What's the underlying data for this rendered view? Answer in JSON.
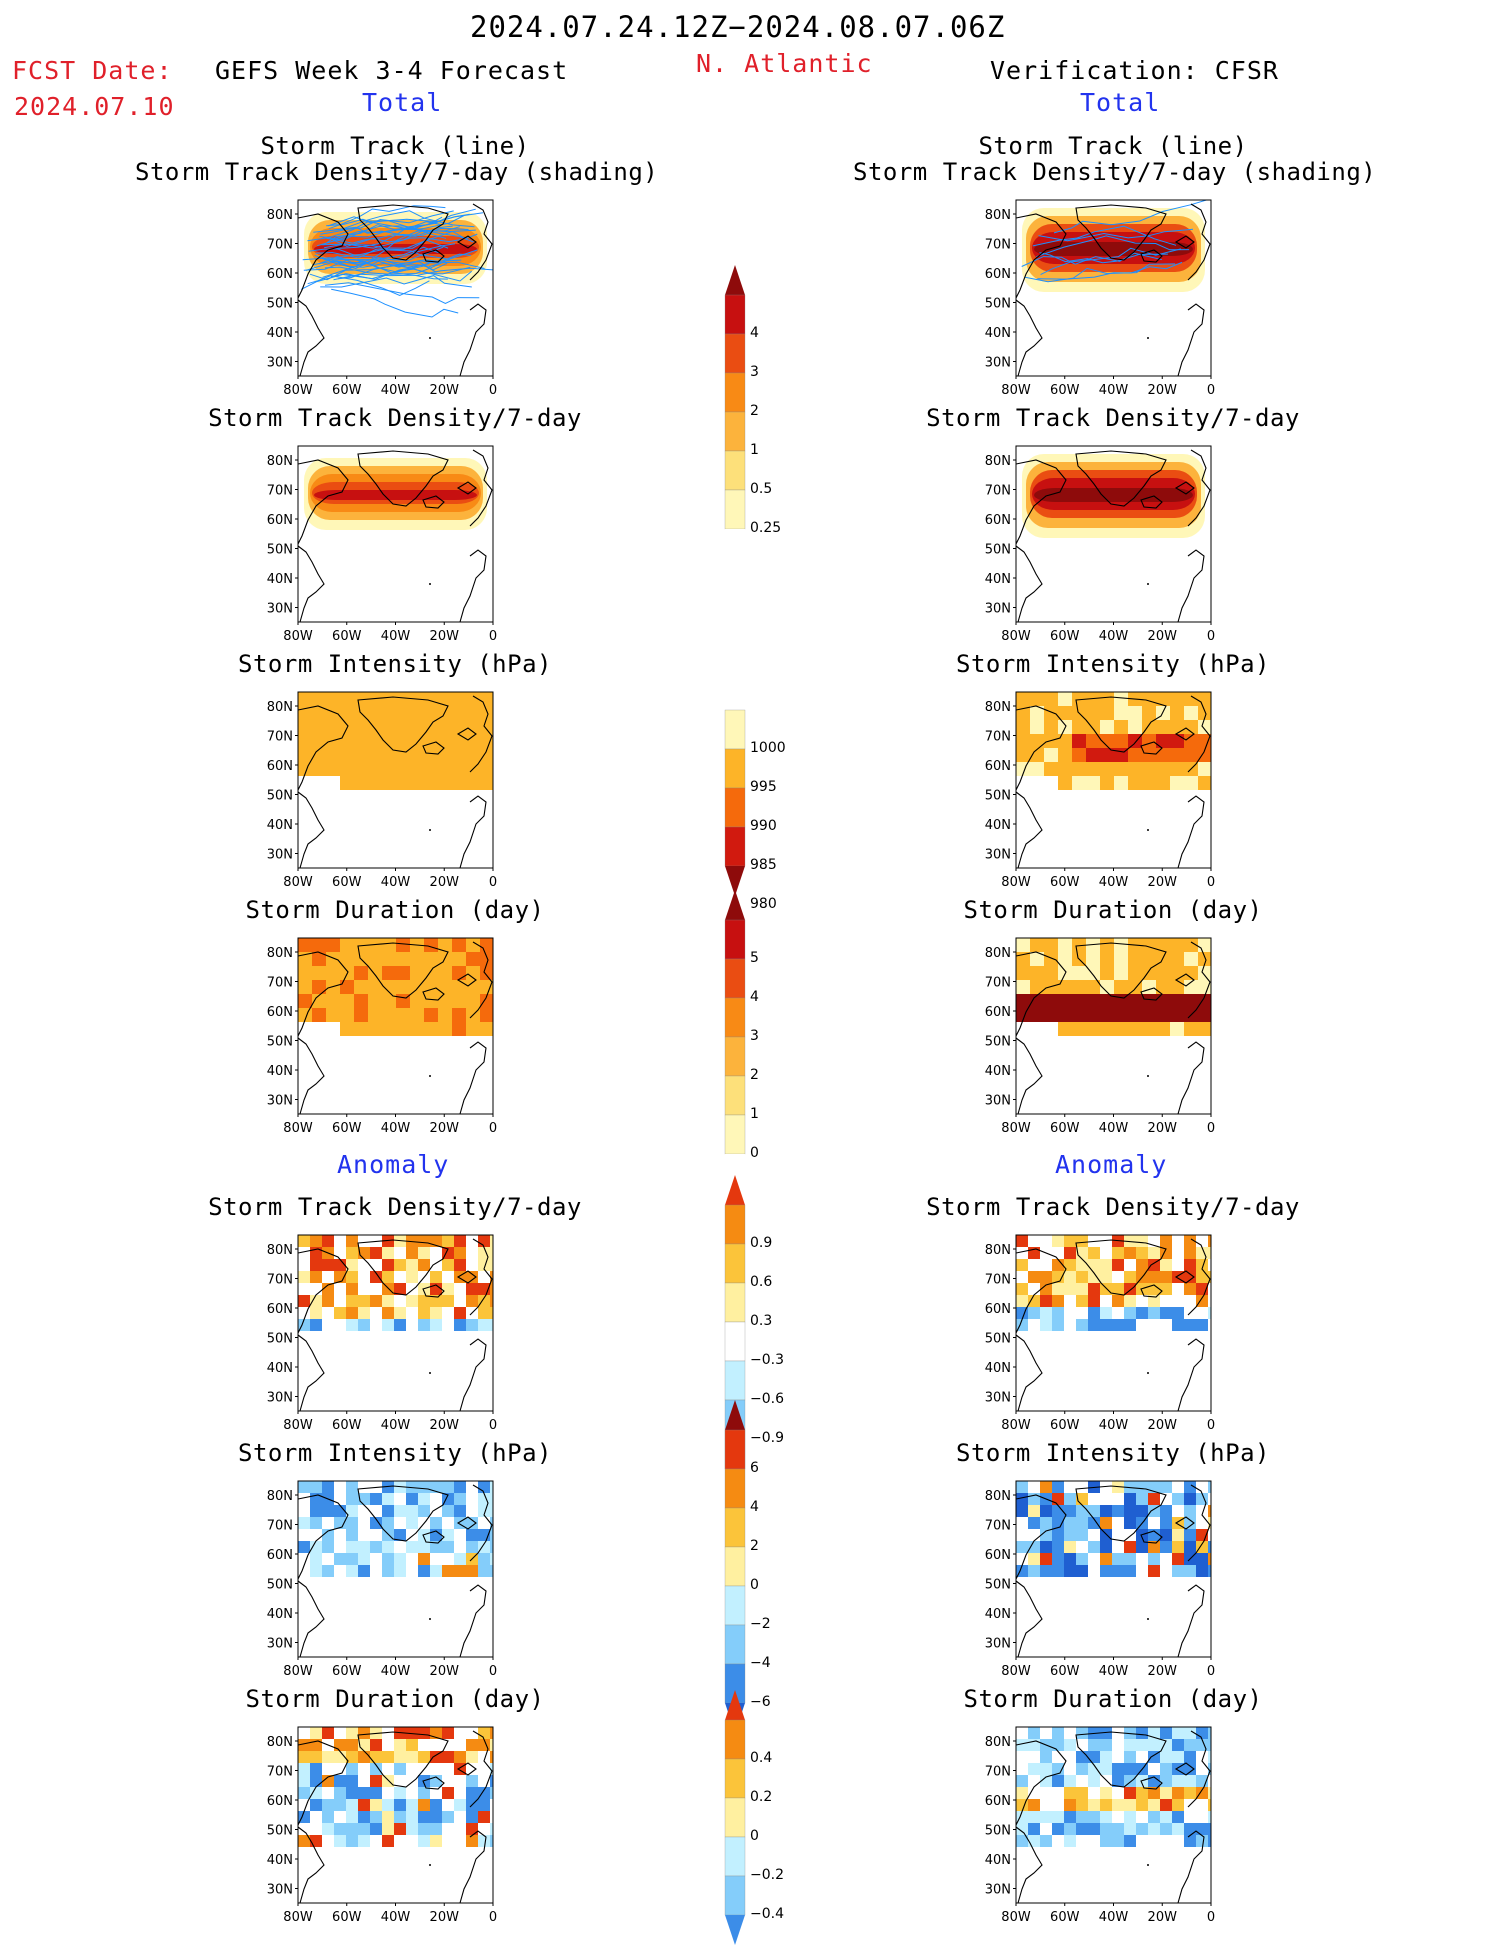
{
  "header": {
    "date_range": "2024.07.24.12Z−2024.08.07.06Z",
    "fcst_label": "FCST Date:",
    "fcst_date": "2024.07.10",
    "left_title": "GEFS Week 3-4 Forecast",
    "region": "N. Atlantic",
    "right_title": "Verification: CFSR",
    "total_left": "Total",
    "total_right": "Total",
    "anomaly_left": "Anomaly",
    "anomaly_right": "Anomaly"
  },
  "panel_titles": {
    "track_line": "Storm Track (line)",
    "track_density_shading": "Storm Track Density/7-day (shading)",
    "track_density": "Storm Track Density/7-day",
    "intensity": "Storm Intensity (hPa)",
    "duration": "Storm Duration (day)"
  },
  "map_axes": {
    "lat_labels": [
      "80N",
      "70N",
      "60N",
      "50N",
      "40N",
      "30N"
    ],
    "lon_labels": [
      "80W",
      "60W",
      "40W",
      "20W",
      "0"
    ]
  },
  "colorbars": {
    "density": [
      "4",
      "3",
      "2",
      "1",
      "0.5",
      "0.25"
    ],
    "intensity": [
      "1000",
      "995",
      "990",
      "985",
      "980"
    ],
    "duration": [
      "5",
      "4",
      "3",
      "2",
      "1",
      "0"
    ],
    "density_anom": [
      "0.9",
      "0.6",
      "0.3",
      "−0.3",
      "−0.6",
      "−0.9"
    ],
    "intensity_anom": [
      "6",
      "4",
      "2",
      "0",
      "−2",
      "−4",
      "−6"
    ],
    "duration_anom": [
      "0.4",
      "0.2",
      "0",
      "−0.2",
      "−0.4"
    ]
  },
  "colors": {
    "title_red": "#e0202a",
    "label_blue": "#2233ee",
    "track_line": "#1e90ff"
  }
}
